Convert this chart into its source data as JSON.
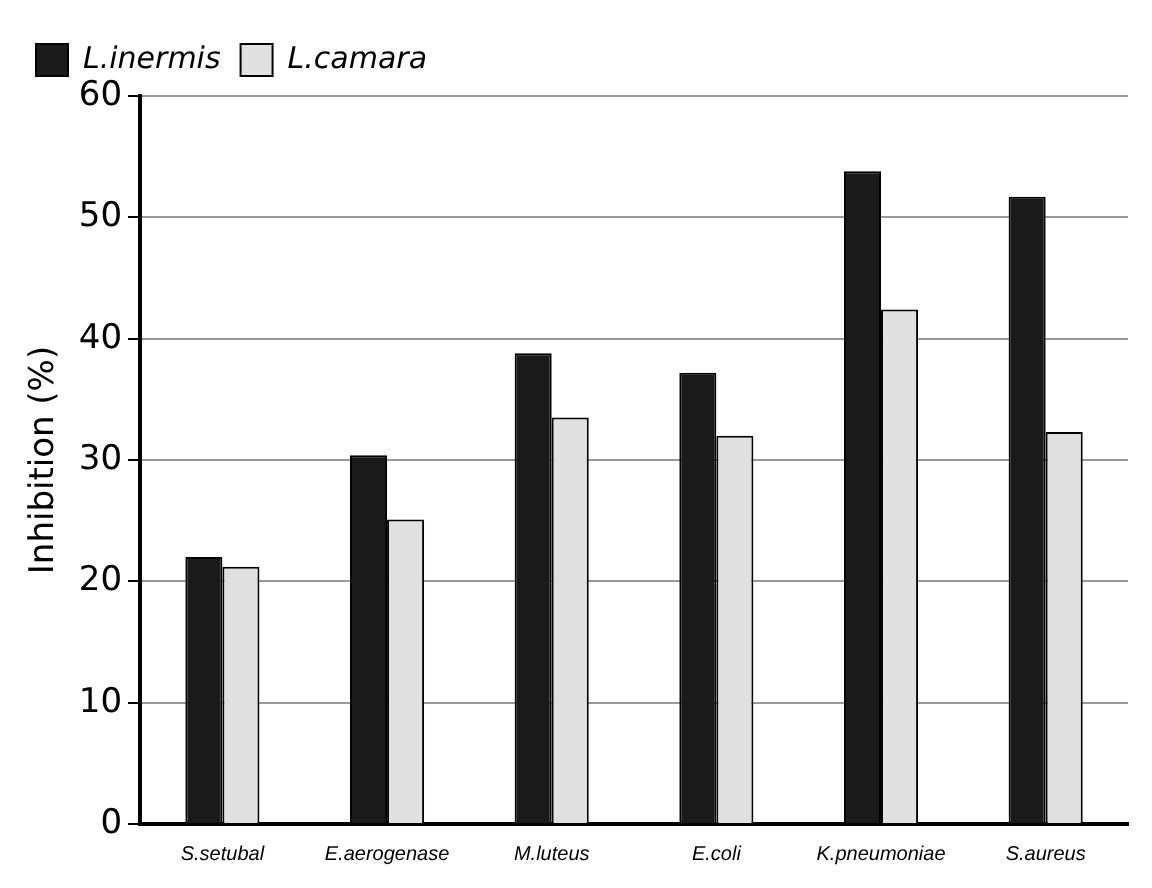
{
  "chart_data": {
    "type": "bar",
    "ylabel": "Inhibition (%)",
    "categories": [
      "S.setubal",
      "E.aerogenase",
      "M.luteus",
      "E.coli",
      "K.pneumoniae",
      "S.aureus"
    ],
    "series": [
      {
        "name": "L.inermis",
        "color": "#1a1a1a",
        "values": [
          22.0,
          30.4,
          38.8,
          37.2,
          53.8,
          51.7
        ]
      },
      {
        "name": "L.camara",
        "color": "#e0e0e0",
        "values": [
          21.2,
          25.1,
          33.5,
          32.0,
          42.4,
          32.3
        ]
      }
    ],
    "ylim": [
      0,
      60
    ],
    "yticks": [
      0,
      10,
      20,
      30,
      40,
      50,
      60
    ],
    "grid": "y",
    "legend": "top left"
  }
}
